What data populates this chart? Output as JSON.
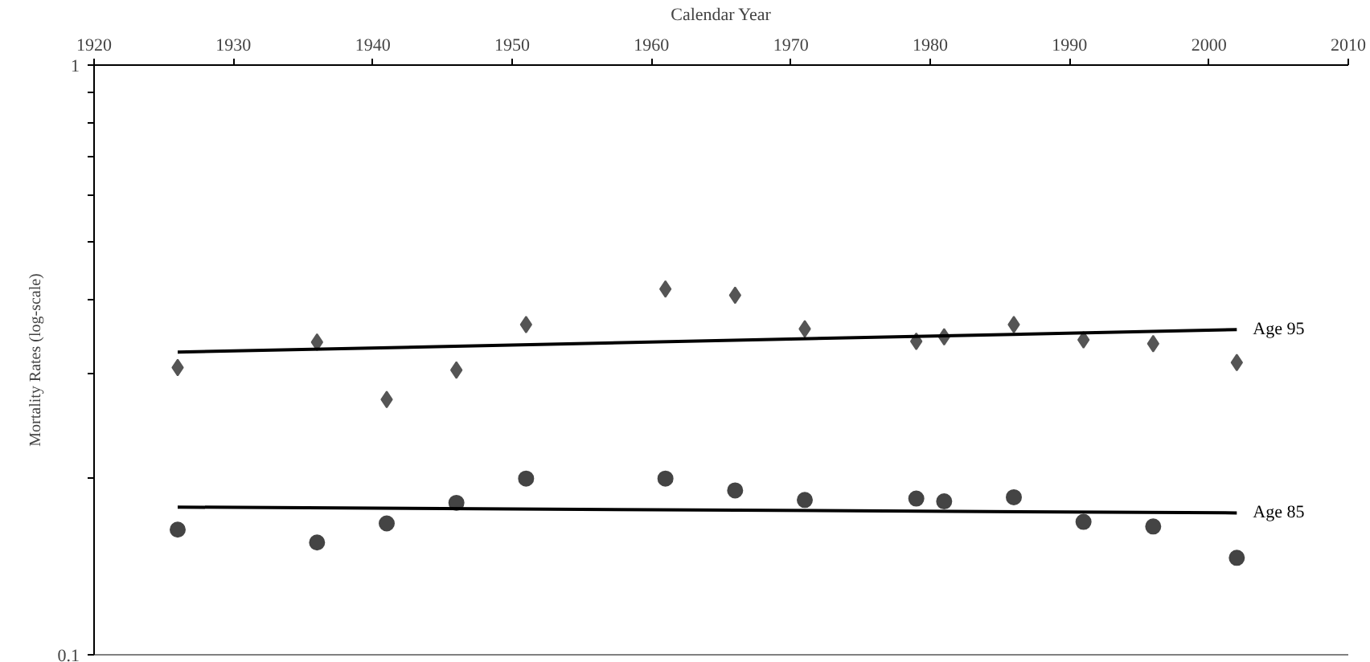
{
  "chart_data": {
    "type": "scatter",
    "xlabel": "Calendar Year",
    "ylabel": "Mortality Rates (log-scale)",
    "log": "y",
    "grid": false,
    "legend": false,
    "xlim": [
      1920,
      2010
    ],
    "xticks": [
      1920,
      1930,
      1940,
      1950,
      1960,
      1970,
      1980,
      1990,
      2000,
      2010
    ],
    "ylim": [
      0.1,
      1
    ],
    "yticks": [
      {
        "value": 0.1,
        "label": "0.1"
      },
      {
        "value": 0.2,
        "label": null
      },
      {
        "value": 0.3,
        "label": null
      },
      {
        "value": 0.4,
        "label": null
      },
      {
        "value": 0.5,
        "label": null
      },
      {
        "value": 0.6,
        "label": null
      },
      {
        "value": 0.7,
        "label": null
      },
      {
        "value": 0.8,
        "label": null
      },
      {
        "value": 0.9,
        "label": null
      },
      {
        "value": 1,
        "label": "1"
      }
    ],
    "series": [
      {
        "marker": "diamond",
        "color": "#555555",
        "x": [
          1926,
          1936,
          1941,
          1946,
          1951,
          1961,
          1966,
          1971,
          1979,
          1981,
          1986,
          1991,
          1996,
          2002
        ],
        "values": [
          0.307,
          0.339,
          0.271,
          0.304,
          0.363,
          0.417,
          0.407,
          0.357,
          0.34,
          0.346,
          0.363,
          0.342,
          0.337,
          0.313
        ]
      },
      {
        "marker": "circle",
        "color": "#444444",
        "x": [
          1926,
          1936,
          1941,
          1946,
          1951,
          1961,
          1966,
          1971,
          1979,
          1981,
          1986,
          1991,
          1996,
          2002
        ],
        "values": [
          0.163,
          0.155,
          0.167,
          0.181,
          0.199,
          0.199,
          0.19,
          0.183,
          0.184,
          0.182,
          0.185,
          0.168,
          0.165,
          0.146
        ]
      },
      {
        "type": "line",
        "name": "Age 95",
        "color": "#000000",
        "x": [
          1926,
          2002
        ],
        "values": [
          0.326,
          0.356
        ]
      },
      {
        "type": "line",
        "name": "Age 85",
        "color": "#000000",
        "x": [
          1926,
          2002
        ],
        "values": [
          0.178,
          0.174
        ]
      }
    ]
  }
}
